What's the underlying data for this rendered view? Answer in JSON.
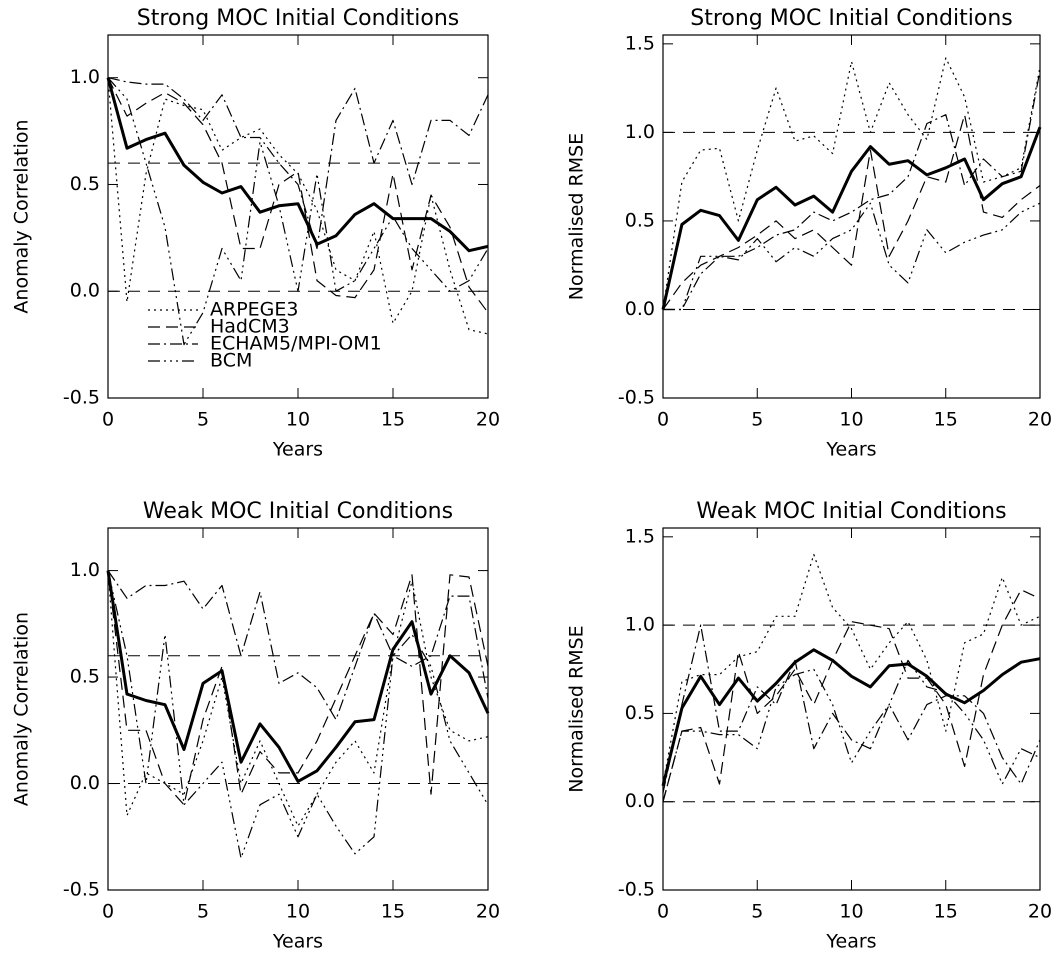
{
  "chart_data": [
    {
      "type": "line",
      "title": "Strong MOC Initial Conditions",
      "xlabel": "Years",
      "ylabel": "Anomaly Correlation",
      "x": [
        0,
        1,
        2,
        3,
        4,
        5,
        6,
        7,
        8,
        9,
        10,
        11,
        12,
        13,
        14,
        15,
        16,
        17,
        18,
        19,
        20
      ],
      "xlim": [
        0,
        20
      ],
      "xticks": [
        0,
        5,
        10,
        15,
        20
      ],
      "ylim": [
        -0.5,
        1.2
      ],
      "yticks": [
        {
          "value": -0.5,
          "label": "-0.5"
        },
        {
          "value": 0,
          "label": "0.0"
        },
        {
          "value": 0.5,
          "label": "0.5"
        },
        {
          "value": 1,
          "label": "1.0"
        }
      ],
      "hlines": [
        0,
        0.6
      ],
      "legend": "lower left",
      "series": [
        {
          "name": "ARPEGE3",
          "color": "#000000",
          "dash": "2 4",
          "width": 1.2,
          "values": [
            1.0,
            -0.05,
            0.55,
            0.9,
            0.87,
            0.85,
            0.66,
            0.72,
            0.76,
            0.64,
            0.55,
            0.38,
            0.1,
            0.05,
            0.28,
            -0.15,
            0.0,
            0.45,
            0.1,
            -0.18,
            -0.2
          ]
        },
        {
          "name": "HadCM3",
          "color": "#000000",
          "dash": "12 6",
          "width": 1.2,
          "values": [
            1.0,
            0.82,
            0.88,
            0.93,
            0.88,
            0.78,
            0.6,
            0.2,
            0.2,
            0.5,
            0.56,
            0.05,
            -0.02,
            -0.03,
            0.1,
            0.55,
            0.1,
            0.45,
            0.3,
            0.02,
            -0.1
          ]
        },
        {
          "name": "ECHAM5/MPI-OM1",
          "color": "#000000",
          "dash": "12 4 2 4",
          "width": 1.2,
          "values": [
            1.0,
            0.98,
            0.97,
            0.97,
            0.9,
            0.8,
            0.92,
            0.72,
            0.72,
            0.6,
            0.5,
            0.2,
            0.8,
            0.95,
            0.6,
            0.8,
            0.5,
            0.8,
            0.8,
            0.73,
            0.92
          ]
        },
        {
          "name": "BCM",
          "color": "#000000",
          "dash": "12 4 2 4 2 4 2 4",
          "width": 1.2,
          "values": [
            1.0,
            0.9,
            0.6,
            0.3,
            -0.25,
            -0.1,
            0.2,
            0.05,
            0.7,
            0.4,
            0.0,
            0.55,
            0.0,
            0.05,
            0.2,
            0.35,
            0.2,
            0.1,
            0.0,
            0.05,
            0.2
          ]
        },
        {
          "color": "#000000",
          "dash": "none",
          "width": 3,
          "values": [
            1.0,
            0.67,
            0.71,
            0.74,
            0.59,
            0.51,
            0.46,
            0.49,
            0.37,
            0.4,
            0.41,
            0.22,
            0.26,
            0.36,
            0.41,
            0.34,
            0.34,
            0.34,
            0.28,
            0.19,
            0.21
          ]
        }
      ]
    },
    {
      "type": "line",
      "title": "Strong MOC Initial Conditions",
      "xlabel": "Years",
      "ylabel": "Normalised RMSE",
      "x": [
        0,
        1,
        2,
        3,
        4,
        5,
        6,
        7,
        8,
        9,
        10,
        11,
        12,
        13,
        14,
        15,
        16,
        17,
        18,
        19,
        20
      ],
      "xlim": [
        0,
        20
      ],
      "xticks": [
        0,
        5,
        10,
        15,
        20
      ],
      "ylim": [
        -0.5,
        1.55
      ],
      "yticks": [
        {
          "value": -0.5,
          "label": "-0.5"
        },
        {
          "value": 0,
          "label": "0.0"
        },
        {
          "value": 0.5,
          "label": "0.5"
        },
        {
          "value": 1,
          "label": "1.0"
        },
        {
          "value": 1.5,
          "label": "1.5"
        }
      ],
      "hlines": [
        0,
        1
      ],
      "series": [
        {
          "color": "#000000",
          "dash": "2 4",
          "width": 1.2,
          "values": [
            0,
            0.72,
            0.9,
            0.91,
            0.5,
            0.9,
            1.25,
            0.95,
            0.98,
            0.88,
            1.4,
            1.0,
            1.28,
            1.1,
            0.96,
            1.42,
            1.2,
            0.72,
            0.75,
            0.8,
            1.37
          ]
        },
        {
          "color": "#000000",
          "dash": "12 6",
          "width": 1.2,
          "values": [
            0,
            0.15,
            0.25,
            0.3,
            0.35,
            0.42,
            0.5,
            0.4,
            0.45,
            0.35,
            0.25,
            0.9,
            0.3,
            0.5,
            0.75,
            0.72,
            1.1,
            0.55,
            0.52,
            0.62,
            0.7
          ]
        },
        {
          "color": "#000000",
          "dash": "12 4 2 4",
          "width": 1.2,
          "values": [
            0,
            0.0,
            0.2,
            0.3,
            0.3,
            0.35,
            0.42,
            0.45,
            0.55,
            0.5,
            0.55,
            0.62,
            0.65,
            0.75,
            1.05,
            1.1,
            0.7,
            0.85,
            0.75,
            0.78,
            1.35
          ]
        },
        {
          "color": "#000000",
          "dash": "12 4 2 4 2 4 2 4",
          "width": 1.2,
          "values": [
            0,
            0.0,
            0.3,
            0.3,
            0.28,
            0.4,
            0.27,
            0.35,
            0.3,
            0.4,
            0.45,
            0.6,
            0.25,
            0.15,
            0.45,
            0.32,
            0.38,
            0.42,
            0.45,
            0.55,
            0.6
          ]
        },
        {
          "color": "#000000",
          "dash": "none",
          "width": 3,
          "values": [
            0,
            0.48,
            0.56,
            0.53,
            0.39,
            0.62,
            0.69,
            0.59,
            0.64,
            0.55,
            0.78,
            0.92,
            0.82,
            0.84,
            0.76,
            0.8,
            0.85,
            0.62,
            0.71,
            0.75,
            1.03
          ]
        }
      ]
    },
    {
      "type": "line",
      "title": "Weak MOC Initial Conditions",
      "xlabel": "Years",
      "ylabel": "Anomaly Correlation",
      "x": [
        0,
        1,
        2,
        3,
        4,
        5,
        6,
        7,
        8,
        9,
        10,
        11,
        12,
        13,
        14,
        15,
        16,
        17,
        18,
        19,
        20
      ],
      "xlim": [
        0,
        20
      ],
      "xticks": [
        0,
        5,
        10,
        15,
        20
      ],
      "ylim": [
        -0.5,
        1.2
      ],
      "yticks": [
        {
          "value": -0.5,
          "label": "-0.5"
        },
        {
          "value": 0,
          "label": "0.0"
        },
        {
          "value": 0.5,
          "label": "0.5"
        },
        {
          "value": 1,
          "label": "1.0"
        }
      ],
      "hlines": [
        0,
        0.6
      ],
      "series": [
        {
          "color": "#000000",
          "dash": "2 4",
          "width": 1.2,
          "values": [
            1.0,
            -0.15,
            0.05,
            0.0,
            -0.05,
            0.2,
            0.5,
            0.0,
            0.2,
            0.0,
            -0.2,
            -0.05,
            0.1,
            0.2,
            0.05,
            0.6,
            0.95,
            0.5,
            0.25,
            0.2,
            0.22
          ]
        },
        {
          "color": "#000000",
          "dash": "12 6",
          "width": 1.2,
          "values": [
            1.0,
            0.25,
            0.25,
            0.0,
            -0.1,
            0.3,
            0.55,
            -0.05,
            0.15,
            0.05,
            0.05,
            0.2,
            0.4,
            0.6,
            0.8,
            0.7,
            0.98,
            -0.05,
            0.98,
            0.97,
            0.55
          ]
        },
        {
          "color": "#000000",
          "dash": "12 4 2 4",
          "width": 1.2,
          "values": [
            1.0,
            0.87,
            0.93,
            0.93,
            0.95,
            0.82,
            0.93,
            0.6,
            0.9,
            0.47,
            0.52,
            0.45,
            0.3,
            0.55,
            0.8,
            0.6,
            0.55,
            0.6,
            0.88,
            0.88,
            0.4
          ]
        },
        {
          "color": "#000000",
          "dash": "12 4 2 4 2 4 2 4",
          "width": 1.2,
          "values": [
            1.0,
            0.6,
            0.0,
            0.7,
            -0.1,
            0.0,
            0.1,
            -0.35,
            -0.1,
            -0.05,
            -0.25,
            -0.05,
            -0.2,
            -0.33,
            -0.25,
            0.6,
            0.7,
            0.55,
            0.2,
            0.05,
            -0.1
          ]
        },
        {
          "color": "#000000",
          "dash": "none",
          "width": 3,
          "values": [
            1.0,
            0.42,
            0.39,
            0.37,
            0.16,
            0.47,
            0.53,
            0.1,
            0.28,
            0.17,
            0.01,
            0.06,
            0.17,
            0.29,
            0.3,
            0.63,
            0.76,
            0.42,
            0.6,
            0.52,
            0.33
          ]
        }
      ]
    },
    {
      "type": "line",
      "title": "Weak MOC Initial Conditions",
      "xlabel": "Years",
      "ylabel": "Normalised RMSE",
      "x": [
        0,
        1,
        2,
        3,
        4,
        5,
        6,
        7,
        8,
        9,
        10,
        11,
        12,
        13,
        14,
        15,
        16,
        17,
        18,
        19,
        20
      ],
      "xlim": [
        0,
        20
      ],
      "xticks": [
        0,
        5,
        10,
        15,
        20
      ],
      "ylim": [
        -0.5,
        1.55
      ],
      "yticks": [
        {
          "value": -0.5,
          "label": "-0.5"
        },
        {
          "value": 0,
          "label": "0.0"
        },
        {
          "value": 0.5,
          "label": "0.5"
        },
        {
          "value": 1,
          "label": "1.0"
        },
        {
          "value": 1.5,
          "label": "1.5"
        }
      ],
      "hlines": [
        0,
        1
      ],
      "series": [
        {
          "color": "#000000",
          "dash": "2 4",
          "width": 1.2,
          "values": [
            0.1,
            0.68,
            0.72,
            0.72,
            0.82,
            0.85,
            1.05,
            1.05,
            1.4,
            1.1,
            0.98,
            0.75,
            0.9,
            1.02,
            0.8,
            0.4,
            0.9,
            0.95,
            1.27,
            1.0,
            1.05
          ]
        },
        {
          "color": "#000000",
          "dash": "12 6",
          "width": 1.2,
          "values": [
            0.0,
            0.4,
            0.42,
            0.1,
            0.85,
            0.5,
            0.6,
            0.75,
            0.55,
            0.8,
            1.02,
            1.0,
            0.98,
            0.7,
            0.7,
            0.55,
            0.2,
            0.72,
            1.0,
            1.2,
            1.15
          ]
        },
        {
          "color": "#000000",
          "dash": "12 4 2 4",
          "width": 1.2,
          "values": [
            0.05,
            0.55,
            1.0,
            0.4,
            0.4,
            0.65,
            0.55,
            0.8,
            0.3,
            0.5,
            0.35,
            0.3,
            0.55,
            0.35,
            0.55,
            0.6,
            0.6,
            0.5,
            0.25,
            0.1,
            0.35
          ]
        },
        {
          "color": "#000000",
          "dash": "12 4 2 4 2 4 2 4",
          "width": 1.2,
          "values": [
            0.0,
            0.4,
            0.4,
            0.38,
            0.38,
            0.3,
            0.65,
            0.72,
            0.75,
            0.55,
            0.22,
            0.4,
            0.55,
            0.8,
            0.65,
            0.62,
            0.5,
            0.35,
            0.1,
            0.3,
            0.25
          ]
        },
        {
          "color": "#000000",
          "dash": "none",
          "width": 3,
          "values": [
            0.09,
            0.53,
            0.71,
            0.55,
            0.7,
            0.57,
            0.67,
            0.79,
            0.86,
            0.8,
            0.71,
            0.65,
            0.77,
            0.78,
            0.71,
            0.61,
            0.56,
            0.63,
            0.72,
            0.79,
            0.81
          ]
        }
      ]
    }
  ]
}
